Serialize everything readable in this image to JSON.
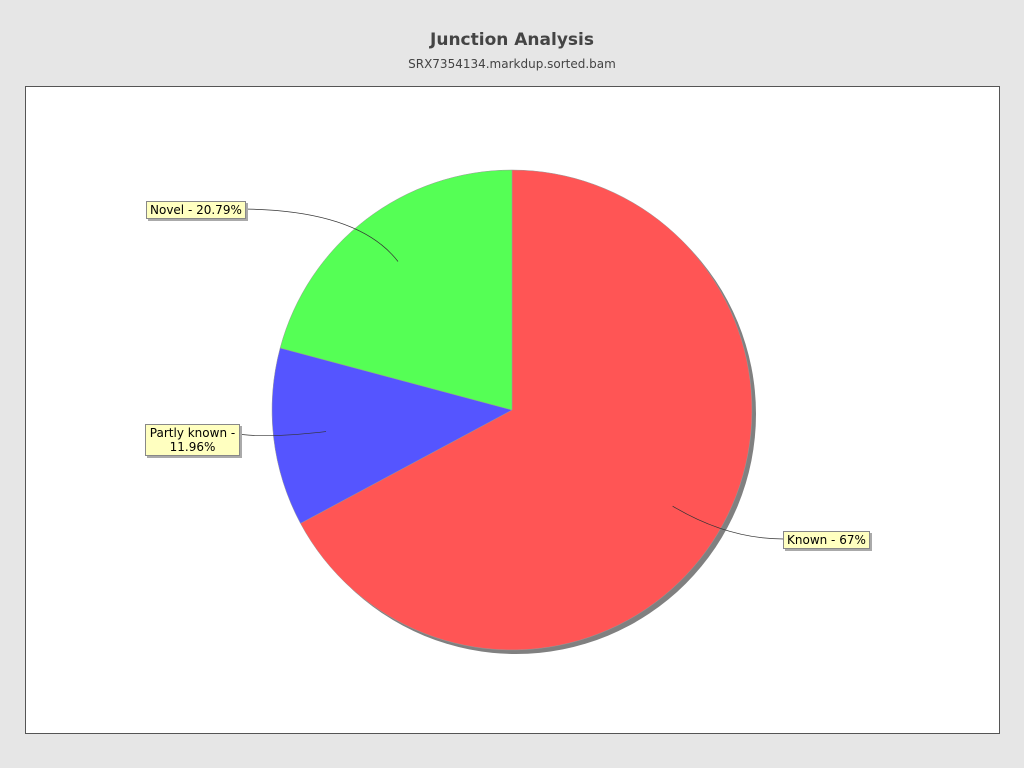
{
  "chart_data": {
    "type": "pie",
    "title": "Junction Analysis",
    "subtitle": "SRX7354134.markdup.sorted.bam",
    "start": "top",
    "direction": "clockwise",
    "slices": [
      {
        "name": "Known",
        "value": 67,
        "label": "Known - 67%",
        "color": "#ff5555"
      },
      {
        "name": "Partly known",
        "value": 11.96,
        "label": "Partly known - 11.96%",
        "color": "#5555ff"
      },
      {
        "name": "Novel",
        "value": 20.79,
        "label": "Novel - 20.79%",
        "color": "#55ff55"
      }
    ],
    "shadow_color": "#808080",
    "label_background": "#ffffc0"
  }
}
